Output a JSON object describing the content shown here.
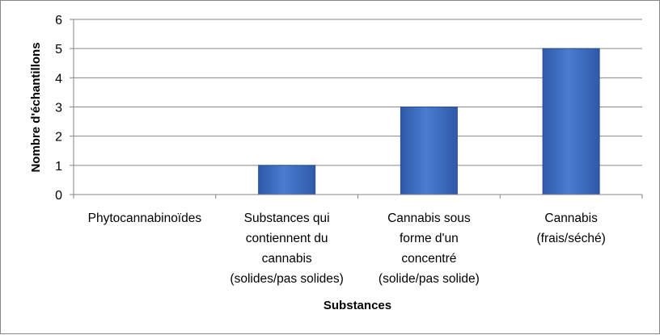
{
  "chart_data": {
    "type": "bar",
    "title": "",
    "categories": [
      [
        "Phytocannabinoïdes"
      ],
      [
        "Substances qui",
        "contiennent du",
        "cannabis",
        "(solides/pas solides)"
      ],
      [
        "Cannabis sous",
        "forme d'un",
        "concentré",
        "(solide/pas solide)"
      ],
      [
        "Cannabis",
        "(frais/séché)"
      ]
    ],
    "values": [
      0,
      1,
      3,
      5
    ],
    "xlabel": "Substances",
    "ylabel": "Nombre d'échantillons",
    "ylim": [
      0,
      6
    ],
    "yticks": [
      0,
      1,
      2,
      3,
      4,
      5,
      6
    ],
    "grid": true,
    "legend": "none",
    "colors": {
      "bar_top": "#6f9ae0",
      "bar_mid": "#4a7cd0",
      "bar_bottom": "#2f5aa8",
      "bar_stroke": "#2b4f8e",
      "grid": "#868686",
      "axis": "#868686"
    }
  }
}
